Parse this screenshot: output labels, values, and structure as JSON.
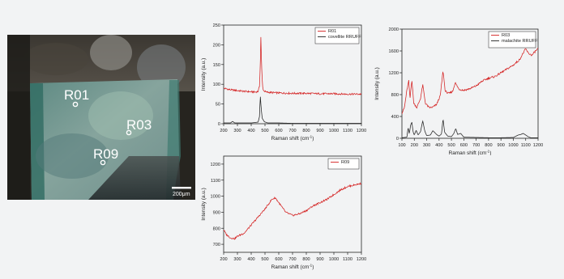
{
  "micrograph": {
    "labels": [
      "R01",
      "R03",
      "R09"
    ],
    "scale_bar": "200μm",
    "colors": {
      "frame": "#2b2a26",
      "patina": "#4f7a73",
      "crust": "#7fae9c",
      "label": "#ffffff"
    }
  },
  "chart_data": [
    {
      "type": "line",
      "xlabel": "Raman shift (cm",
      "xlabel_sup": "-1",
      "xlabel_end": ")",
      "ylabel": "Intensity (a.u.)",
      "xlim": [
        200,
        1200
      ],
      "ylim": [
        0,
        250
      ],
      "xticks": [
        200,
        300,
        400,
        500,
        600,
        700,
        800,
        900,
        1000,
        1100,
        1200
      ],
      "yticks": [
        0,
        50,
        100,
        150,
        200,
        250
      ],
      "legend_position": "top-right",
      "series": [
        {
          "name": "R01",
          "color": "#d42020",
          "x": [
            200,
            250,
            300,
            350,
            400,
            430,
            450,
            460,
            466,
            470,
            475,
            482,
            490,
            510,
            550,
            600,
            700,
            800,
            900,
            1000,
            1100,
            1200
          ],
          "y": [
            90,
            86,
            84,
            82,
            81,
            80,
            82,
            95,
            150,
            220,
            150,
            95,
            84,
            80,
            79,
            78,
            77,
            77,
            76,
            76,
            75,
            75
          ]
        },
        {
          "name": "covellite RRUFF",
          "color": "#222222",
          "x": [
            200,
            250,
            265,
            280,
            300,
            400,
            450,
            460,
            466,
            472,
            480,
            495,
            520,
            600,
            700,
            800,
            900,
            1000,
            1100,
            1200
          ],
          "y": [
            2,
            2,
            6,
            2,
            2,
            2,
            4,
            18,
            72,
            40,
            14,
            5,
            2,
            2,
            1,
            1,
            1,
            1,
            1,
            1
          ]
        }
      ]
    },
    {
      "type": "line",
      "xlabel": "Raman shift (cm",
      "xlabel_sup": "-1",
      "xlabel_end": ")",
      "ylabel": "Intensity (a.u.)",
      "xlim": [
        100,
        1200
      ],
      "ylim": [
        0,
        2000
      ],
      "xticks": [
        100,
        200,
        300,
        400,
        500,
        600,
        700,
        800,
        900,
        1000,
        1100,
        1200
      ],
      "yticks": [
        0,
        400,
        800,
        1200,
        1600,
        2000
      ],
      "legend_position": "top-right",
      "series": [
        {
          "name": "R03",
          "color": "#d42020",
          "x": [
            100,
            120,
            140,
            155,
            165,
            180,
            195,
            220,
            250,
            268,
            290,
            320,
            350,
            380,
            410,
            432,
            450,
            480,
            510,
            530,
            560,
            600,
            650,
            700,
            750,
            800,
            850,
            900,
            950,
            1000,
            1050,
            1080,
            1100,
            1120,
            1150,
            1180,
            1200
          ],
          "y": [
            460,
            560,
            880,
            1050,
            720,
            1080,
            650,
            560,
            730,
            980,
            640,
            560,
            570,
            620,
            780,
            1240,
            860,
            820,
            860,
            1020,
            900,
            880,
            910,
            960,
            1050,
            1100,
            1130,
            1200,
            1270,
            1340,
            1440,
            1560,
            1640,
            1560,
            1520,
            1600,
            1640
          ]
        },
        {
          "name": "malachite RRUFF",
          "color": "#222222",
          "x": [
            100,
            140,
            150,
            160,
            170,
            180,
            190,
            200,
            215,
            230,
            250,
            268,
            285,
            300,
            330,
            350,
            380,
            400,
            420,
            432,
            445,
            470,
            500,
            520,
            535,
            550,
            575,
            600,
            700,
            800,
            900,
            1000,
            1040,
            1060,
            1080,
            1100,
            1120,
            1140,
            1200
          ],
          "y": [
            10,
            20,
            200,
            80,
            240,
            300,
            120,
            60,
            150,
            60,
            120,
            320,
            130,
            50,
            60,
            140,
            70,
            40,
            80,
            360,
            110,
            40,
            30,
            90,
            180,
            70,
            90,
            20,
            15,
            10,
            10,
            15,
            60,
            70,
            90,
            60,
            30,
            10,
            10
          ]
        }
      ]
    },
    {
      "type": "line",
      "xlabel": "Raman shift (cm",
      "xlabel_sup": "-1",
      "xlabel_end": ")",
      "ylabel": "Intensity (a.u.)",
      "xlim": [
        200,
        1200
      ],
      "ylim": [
        650,
        1250
      ],
      "xticks": [
        200,
        300,
        400,
        500,
        600,
        700,
        800,
        900,
        1000,
        1100,
        1200
      ],
      "yticks": [
        700,
        800,
        900,
        1000,
        1100,
        1200
      ],
      "legend_position": "top-right",
      "series": [
        {
          "name": "R09",
          "color": "#d42020",
          "x": [
            200,
            220,
            250,
            280,
            300,
            350,
            400,
            450,
            500,
            550,
            575,
            600,
            650,
            700,
            750,
            800,
            850,
            900,
            950,
            1000,
            1050,
            1100,
            1150,
            1200
          ],
          "y": [
            790,
            760,
            740,
            735,
            750,
            770,
            820,
            870,
            920,
            980,
            990,
            960,
            900,
            880,
            890,
            910,
            940,
            960,
            980,
            1010,
            1040,
            1060,
            1070,
            1080
          ]
        }
      ]
    }
  ]
}
